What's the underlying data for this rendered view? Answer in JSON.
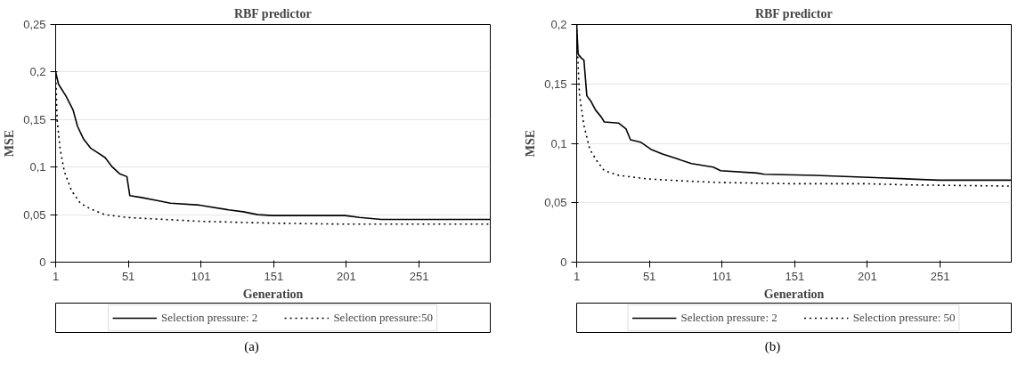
{
  "chart_data": [
    {
      "type": "line",
      "title": "RBF predictor",
      "xlabel": "Generation",
      "ylabel": "MSE",
      "annotations": [
        "(a)"
      ],
      "x": [
        1,
        3,
        8,
        13,
        16,
        20,
        25,
        30,
        35,
        40,
        45,
        50,
        52,
        60,
        70,
        80,
        100,
        120,
        130,
        140,
        150,
        200,
        210,
        225,
        300
      ],
      "xlim": [
        1,
        300
      ],
      "xticks": [
        1,
        51,
        101,
        151,
        201,
        251
      ],
      "ylim": [
        0,
        0.25
      ],
      "yticks": [
        0,
        {
          "value": 0.05,
          "label": "0,05"
        },
        {
          "value": 0.1,
          "label": "0,1"
        },
        {
          "value": 0.15,
          "label": "0,15"
        },
        {
          "value": 0.2,
          "label": "0,2"
        },
        {
          "value": 0.25,
          "label": "0,25"
        }
      ],
      "grid": "y",
      "legend": "bottom",
      "series": [
        {
          "name": "Selection pressure: 2",
          "color": "#000000",
          "line_style": "solid",
          "values": [
            0.2,
            0.187,
            0.175,
            0.16,
            0.143,
            0.13,
            0.12,
            0.115,
            0.11,
            0.1,
            0.093,
            0.09,
            0.07,
            0.068,
            0.065,
            0.062,
            0.06,
            0.055,
            0.053,
            0.05,
            0.049,
            0.049,
            0.047,
            0.045,
            0.045
          ]
        },
        {
          "name": "Selection pressure:50",
          "color": "#000000",
          "line_style": "dotted",
          "x": [
            1,
            2,
            4,
            7,
            12,
            18,
            25,
            35,
            50,
            75,
            100,
            150,
            200,
            300
          ],
          "values": [
            0.2,
            0.15,
            0.12,
            0.095,
            0.075,
            0.062,
            0.056,
            0.05,
            0.047,
            0.045,
            0.043,
            0.041,
            0.04,
            0.04
          ]
        }
      ]
    },
    {
      "type": "line",
      "title": "RBF predictor",
      "xlabel": "Generation",
      "ylabel": "MSE",
      "annotations": [
        "(b)"
      ],
      "x": [
        1,
        2,
        4,
        6,
        7,
        8,
        11,
        14,
        18,
        20,
        30,
        35,
        38,
        45,
        52,
        60,
        70,
        80,
        95,
        100,
        125,
        130,
        165,
        210,
        250,
        300
      ],
      "xlim": [
        1,
        300
      ],
      "xticks": [
        1,
        51,
        101,
        151,
        201,
        251
      ],
      "ylim": [
        0,
        0.2
      ],
      "yticks": [
        0,
        {
          "value": 0.05,
          "label": "0,05"
        },
        {
          "value": 0.1,
          "label": "0,1"
        },
        {
          "value": 0.15,
          "label": "0,15"
        },
        {
          "value": 0.2,
          "label": "0,2"
        }
      ],
      "grid": "y",
      "legend": "bottom",
      "series": [
        {
          "name": "Selection pressure: 2",
          "color": "#000000",
          "line_style": "solid",
          "values": [
            0.2,
            0.175,
            0.172,
            0.17,
            0.155,
            0.14,
            0.135,
            0.128,
            0.122,
            0.118,
            0.117,
            0.112,
            0.103,
            0.101,
            0.095,
            0.091,
            0.087,
            0.083,
            0.08,
            0.077,
            0.075,
            0.074,
            0.073,
            0.071,
            0.069,
            0.069
          ]
        },
        {
          "name": "Selection pressure: 50",
          "color": "#000000",
          "line_style": "dotted",
          "x": [
            1,
            2,
            3,
            6,
            10,
            15,
            20,
            30,
            50,
            80,
            100,
            150,
            200,
            230,
            300
          ],
          "values": [
            0.2,
            0.165,
            0.14,
            0.115,
            0.095,
            0.085,
            0.077,
            0.073,
            0.07,
            0.068,
            0.067,
            0.066,
            0.066,
            0.065,
            0.064
          ]
        }
      ]
    }
  ]
}
